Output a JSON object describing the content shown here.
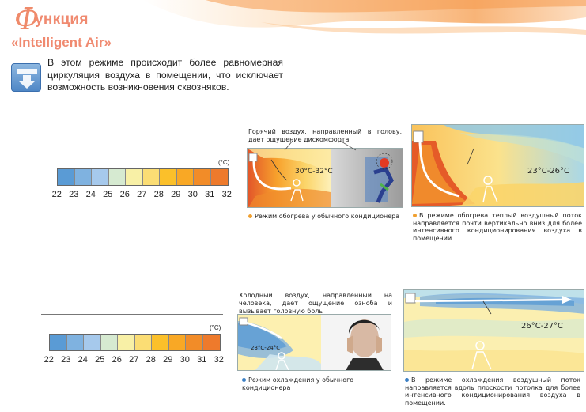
{
  "header": {
    "title_initial": "Ф",
    "title_rest": "ункция",
    "subtitle": "«Intelligent Air»",
    "icon": "airflow-down-icon"
  },
  "intro_text": "В этом режиме происходит более равномерная циркуляция воздуха в помещении, что исключает возможность возникновения сквозняков.",
  "scale": {
    "unit": "(°C)",
    "numbers": [
      "22",
      "23",
      "24",
      "25",
      "26",
      "27",
      "28",
      "29",
      "30",
      "31",
      "32"
    ],
    "colors": [
      "#5a9bd5",
      "#7fb2e0",
      "#a6c9ec",
      "#d6ead1",
      "#f8f0a6",
      "#fbdd74",
      "#fbc02a",
      "#f9a825",
      "#f28c28",
      "#ee7a2c"
    ]
  },
  "heating": {
    "conventional_caption": "Горячий воздух, направленный в голову, дает ощущение дискомфорта",
    "conventional_temp": "30°C-32°C",
    "conventional_label": "Режим обогрева у обычного кондиционера",
    "intelligent_temp": "23°C-26°C",
    "intelligent_label": "В режиме обогрева теплый воздушный поток направляется почти вертикально вниз для более интенсивного кондиционирования воздуха в помещении."
  },
  "cooling": {
    "conventional_caption": "Холодный воздух, направленный на человека, дает ощущение озноба и вызывает головную боль",
    "conventional_temp": "23°C-24°C",
    "conventional_label": "Режим охлаждения у обычного кондиционера",
    "intelligent_temp": "26°C-27°C",
    "intelligent_label": "В режиме охлаждения воздушный поток направляется вдоль плоскости потолка для более интенсивного кондиционирования воздуха в помещении."
  },
  "colors": {
    "accent": "#f08a70",
    "bullet_orange": "#f0a030",
    "bullet_blue": "#3b7fc4"
  }
}
